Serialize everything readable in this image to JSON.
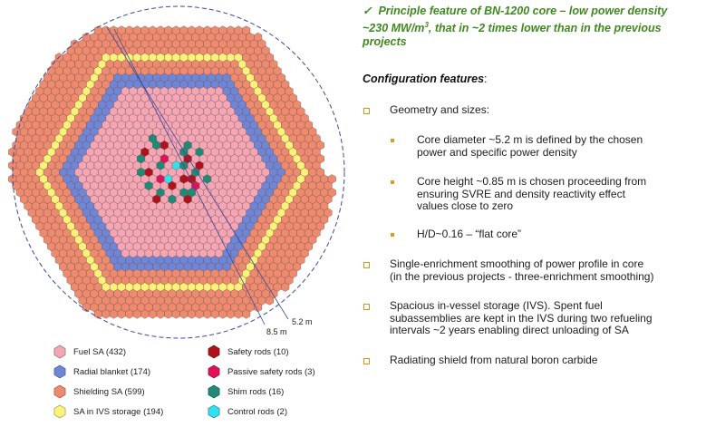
{
  "headline": {
    "check": "✓",
    "line1": "Principle feature of BN-1200 core – low power density",
    "line2_pre": "~230 MW/m",
    "line2_sup": "3",
    "line2_post": ", that in ~2 times lower than in the previous",
    "line3": "projects"
  },
  "config_title": "Configuration features",
  "config_colon": ":",
  "bullets": {
    "geometry": "Geometry and sizes:",
    "sub1_l1": "Core diameter ~5.2 m is defined by the chosen",
    "sub1_l2": "power and specific power density",
    "sub2_l1": "Core height ~0.85 m is chosen proceeding from",
    "sub2_l2": "ensuring SVRE and density reactivity effect",
    "sub2_l3": "values close to zero",
    "sub3": "H/D~0.16 – “flat core”",
    "b2_l1": "Single-enrichment smoothing of power profile in core",
    "b2_l2": "(in the previous projects - three-enrichment smoothing)",
    "b3_l1": "Spacious in-vessel storage (IVS). Spent fuel",
    "b3_l2": "subassemblies are kept in the IVS during two refueling",
    "b3_l3": "intervals ~2 years enabling direct unloading of SA",
    "b4": "Radiating shield from natural boron carbide"
  },
  "diagram": {
    "dim_inner": "5.2 m",
    "dim_outer": "8.5 m"
  },
  "legend": [
    {
      "label": "Fuel SA (432)",
      "color": "#f4a6b4"
    },
    {
      "label": "Radial blanket (174)",
      "color": "#6f86d6"
    },
    {
      "label": "Shielding SA (599)",
      "color": "#ee8a6e"
    },
    {
      "label": "SA in IVS storage (194)",
      "color": "#fbf27a"
    },
    {
      "label": "Safety rods (10)",
      "color": "#b0121b"
    },
    {
      "label": "Passive safety rods (3)",
      "color": "#e0125a"
    },
    {
      "label": "Shim rods (16)",
      "color": "#1f8a78"
    },
    {
      "label": "Control rods (2)",
      "color": "#33e0ee"
    }
  ],
  "colors": {
    "headline": "#3f8a1f",
    "bullet": "#d9941c",
    "fuel": "#f4a6b4",
    "blanket": "#6f86d6",
    "shield": "#ee8a6e",
    "storage": "#fbf27a",
    "safety": "#b0121b",
    "passive": "#e0125a",
    "shim": "#1f8a78",
    "control": "#33e0ee",
    "vessel": "#3a4aa0"
  },
  "counts": {
    "fuel": 432,
    "blanket": 174,
    "shield": 599,
    "storage": 194,
    "safety": 10,
    "passive": 3,
    "shim": 16,
    "control": 2
  }
}
